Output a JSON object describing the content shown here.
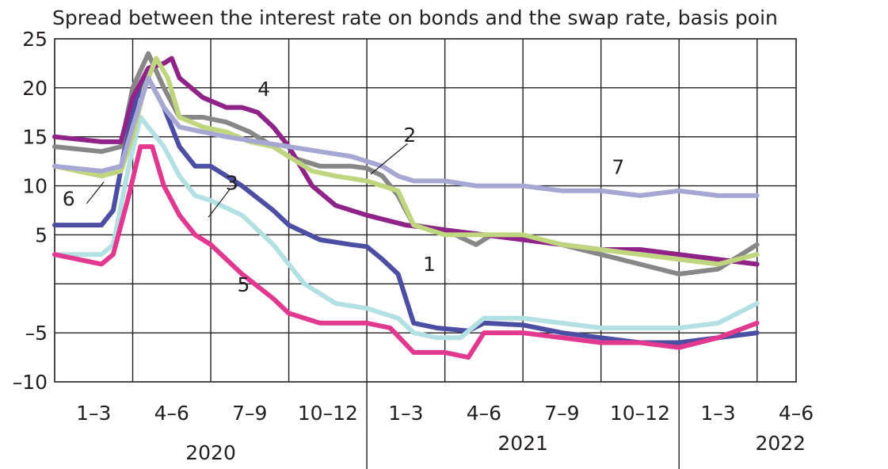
{
  "chart_data": {
    "type": "line",
    "title": "Spread between the interest rate on  bonds and the swap rate, basis poin",
    "ylim": [
      -10,
      25
    ],
    "yticks": [
      25,
      20,
      15,
      10,
      5,
      -5,
      -10
    ],
    "xlim": [
      0,
      9.5
    ],
    "quarter_labels": [
      "1–3",
      "4–6",
      "7–9",
      "10–12",
      "1–3",
      "4–6",
      "7–9",
      "10–12",
      "1–3",
      "4–6"
    ],
    "year_labels": [
      {
        "text": "2020",
        "pos": 2.0
      },
      {
        "text": "2021",
        "pos": 6.0
      },
      {
        "text": "2022",
        "pos": 9.3
      }
    ],
    "grid": true,
    "series": [
      {
        "name": "1",
        "color": "#4b4ea2",
        "x": [
          0,
          0.6,
          0.75,
          0.95,
          1.05,
          1.2,
          1.4,
          1.6,
          1.8,
          2.0,
          2.4,
          2.8,
          3.0,
          3.4,
          3.8,
          4.0,
          4.2,
          4.4,
          4.6,
          4.9,
          5.3,
          5.5,
          6.0,
          6.5,
          7.0,
          7.5,
          8.0,
          8.5,
          9.0
        ],
        "y": [
          6,
          6,
          7.5,
          16,
          19,
          21,
          18,
          14,
          12,
          12,
          10,
          7.5,
          6,
          4.5,
          4,
          3.8,
          2.5,
          1,
          -4,
          -4.5,
          -4.8,
          -4,
          -4.2,
          -5,
          -5.5,
          -6,
          -6,
          -5.5,
          -5
        ]
      },
      {
        "name": "2",
        "color": "#878787",
        "x": [
          0,
          0.6,
          0.85,
          1.0,
          1.2,
          1.4,
          1.6,
          1.9,
          2.2,
          2.5,
          2.8,
          3.0,
          3.4,
          3.8,
          4.0,
          4.2,
          4.4,
          4.6,
          5.0,
          5.4,
          5.6,
          6.0,
          6.5,
          7.0,
          7.5,
          8.0,
          8.5,
          9.0
        ],
        "y": [
          14,
          13.5,
          14,
          20,
          23.5,
          20,
          17,
          17,
          16.5,
          15.5,
          14,
          13,
          12,
          12,
          11.8,
          11,
          9,
          6,
          5.5,
          4,
          5,
          4.8,
          4,
          3,
          2,
          1,
          1.5,
          4
        ]
      },
      {
        "name": "3",
        "color": "#b3e1e3",
        "x": [
          0,
          0.6,
          0.75,
          0.95,
          1.1,
          1.4,
          1.6,
          1.8,
          2.0,
          2.4,
          2.8,
          3.2,
          3.6,
          4.0,
          4.4,
          4.6,
          4.9,
          5.2,
          5.5,
          6.0,
          6.5,
          7.0,
          7.5,
          8.0,
          8.5,
          9.0
        ],
        "y": [
          3,
          3,
          4,
          12,
          17,
          14,
          11,
          9,
          8.5,
          7,
          4,
          0,
          -2,
          -2.5,
          -3.5,
          -5,
          -5.5,
          -5.5,
          -3.5,
          -3.5,
          -4,
          -4.5,
          -4.5,
          -4.5,
          -4,
          -2
        ]
      },
      {
        "name": "4",
        "color": "#8f2388",
        "x": [
          0,
          0.6,
          0.85,
          1.0,
          1.2,
          1.4,
          1.5,
          1.6,
          1.9,
          2.2,
          2.4,
          2.6,
          2.8,
          3.0,
          3.3,
          3.6,
          4.0,
          4.5,
          5.0,
          5.5,
          6.0,
          6.5,
          7.0,
          7.5,
          8.0,
          8.5,
          9.0
        ],
        "y": [
          15,
          14.5,
          14.5,
          19,
          22,
          22.5,
          23,
          21,
          19,
          18,
          18,
          17.5,
          16,
          14,
          10,
          8,
          7,
          6,
          5.5,
          5,
          4.5,
          4,
          3.5,
          3.5,
          3,
          2.5,
          2
        ]
      },
      {
        "name": "5",
        "color": "#e3388f",
        "x": [
          0,
          0.6,
          0.75,
          0.95,
          1.1,
          1.25,
          1.4,
          1.6,
          1.8,
          2.0,
          2.4,
          2.8,
          3.0,
          3.4,
          3.8,
          4.0,
          4.3,
          4.6,
          5.0,
          5.3,
          5.5,
          6.0,
          6.5,
          7.0,
          7.5,
          8.0,
          8.5,
          9.0
        ],
        "y": [
          3,
          2,
          3,
          9,
          14,
          14,
          10,
          7,
          5,
          4,
          1,
          -1.5,
          -3,
          -4,
          -4,
          -4,
          -4.5,
          -7,
          -7,
          -7.5,
          -5,
          -5,
          -5.5,
          -6,
          -6,
          -6.5,
          -5.5,
          -4
        ]
      },
      {
        "name": "6",
        "color": "#c0d67e",
        "x": [
          0,
          0.6,
          0.85,
          1.0,
          1.15,
          1.3,
          1.45,
          1.6,
          1.9,
          2.2,
          2.5,
          2.8,
          3.0,
          3.3,
          3.6,
          4.0,
          4.2,
          4.4,
          4.6,
          5.0,
          5.5,
          6.0,
          6.5,
          7.0,
          7.5,
          8.0,
          8.5,
          9.0
        ],
        "y": [
          12,
          11,
          11.5,
          15,
          20,
          23,
          21,
          17,
          16,
          15.5,
          14.5,
          14,
          13,
          11.5,
          11,
          10.5,
          10,
          9.5,
          6,
          5,
          5,
          5,
          4,
          3.5,
          3,
          2.5,
          2,
          3
        ]
      },
      {
        "name": "7",
        "color": "#a6a7d3",
        "x": [
          0,
          0.6,
          0.85,
          1.0,
          1.2,
          1.4,
          1.6,
          1.9,
          2.2,
          2.6,
          3.0,
          3.4,
          3.8,
          4.0,
          4.2,
          4.4,
          4.6,
          5.0,
          5.4,
          5.6,
          6.0,
          6.5,
          7.0,
          7.5,
          8.0,
          8.5,
          9.0
        ],
        "y": [
          12,
          11.5,
          12,
          16,
          21,
          18,
          16,
          15.5,
          15,
          14.5,
          14,
          13.5,
          13,
          12.5,
          12,
          11,
          10.5,
          10.5,
          10,
          10,
          10,
          9.5,
          9.5,
          9,
          9.5,
          9,
          9
        ]
      }
    ],
    "annotations": [
      {
        "text": "4",
        "x": 2.68,
        "y": 19.2,
        "lx1": null
      },
      {
        "text": "2",
        "x": 4.55,
        "y": 14.5,
        "lx1": 4.52,
        "ly1": 14.3,
        "lx2": 4.05,
        "ly2": 11.2
      },
      {
        "text": "7",
        "x": 7.22,
        "y": 11.2,
        "lx1": null
      },
      {
        "text": "3",
        "x": 2.27,
        "y": 9.6,
        "lx1": 2.24,
        "ly1": 9.6,
        "lx2": 1.97,
        "ly2": 6.8
      },
      {
        "text": "6",
        "x": 0.18,
        "y": 8.0,
        "lx1": 0.41,
        "ly1": 8.2,
        "lx2": 0.63,
        "ly2": 10.4
      },
      {
        "text": "1",
        "x": 4.8,
        "y": 1.3,
        "lx1": null
      },
      {
        "text": "5",
        "x": 2.42,
        "y": -0.8,
        "lx1": null
      }
    ]
  }
}
